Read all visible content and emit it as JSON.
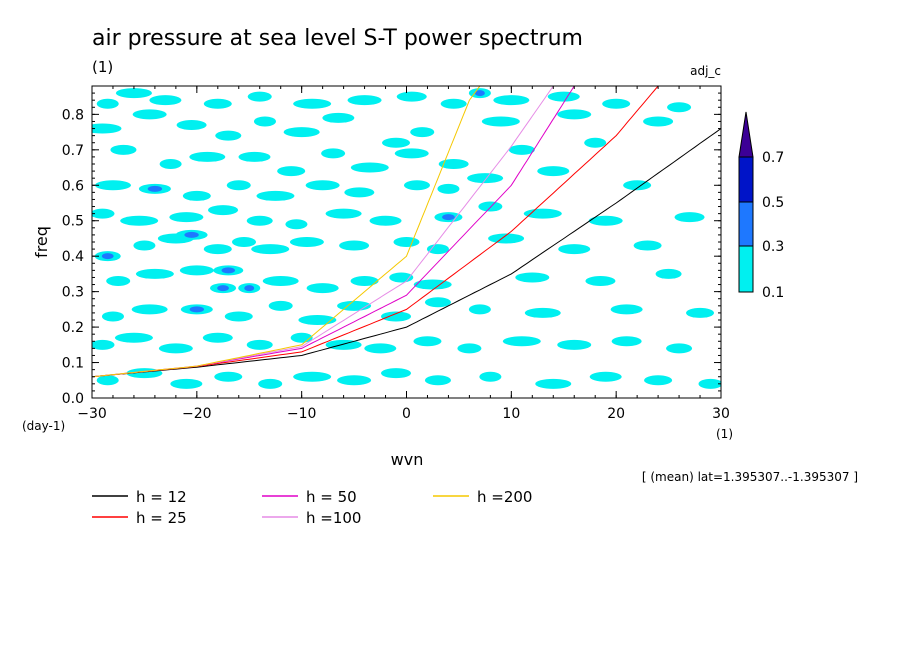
{
  "chart_data": {
    "type": "heatmap",
    "title": "air pressure at sea level S-T power spectrum",
    "units_label": "(1)",
    "case_label": "adj_c",
    "xlabel": "wvn",
    "ylabel": "freq",
    "x_unit_label": "(1)",
    "y_unit_label": "(day-1)",
    "xlim": [
      -30,
      30
    ],
    "ylim": [
      0,
      0.88
    ],
    "xticks": [
      -30,
      -20,
      -10,
      0,
      10,
      20,
      30
    ],
    "yticks": [
      0.0,
      0.1,
      0.2,
      0.3,
      0.4,
      0.5,
      0.6,
      0.7,
      0.8
    ],
    "ytick_labels": [
      "0.0",
      "0.1",
      "0.2",
      "0.3",
      "0.4",
      "0.5",
      "0.6",
      "0.7",
      "0.8"
    ],
    "colorbar": {
      "levels": [
        {
          "label": "0.1",
          "color": "#00f0f0"
        },
        {
          "label": "0.3",
          "color": "#1e78ff"
        },
        {
          "label": "0.5",
          "color": "#0014c8"
        },
        {
          "label": "0.7",
          "color": "#3c0096"
        }
      ]
    },
    "blobs": [
      {
        "x": -28.5,
        "y": 0.83,
        "v": 0.15
      },
      {
        "x": -26,
        "y": 0.86,
        "v": 0.15
      },
      {
        "x": -23,
        "y": 0.84,
        "v": 0.15
      },
      {
        "x": -18,
        "y": 0.83,
        "v": 0.15
      },
      {
        "x": -14,
        "y": 0.85,
        "v": 0.15
      },
      {
        "x": -9,
        "y": 0.83,
        "v": 0.15
      },
      {
        "x": -4,
        "y": 0.84,
        "v": 0.15
      },
      {
        "x": 0.5,
        "y": 0.85,
        "v": 0.15
      },
      {
        "x": 4.5,
        "y": 0.83,
        "v": 0.15
      },
      {
        "x": 7,
        "y": 0.86,
        "v": 0.35
      },
      {
        "x": 10,
        "y": 0.84,
        "v": 0.15
      },
      {
        "x": 15,
        "y": 0.85,
        "v": 0.15
      },
      {
        "x": 20,
        "y": 0.83,
        "v": 0.15
      },
      {
        "x": 26,
        "y": 0.82,
        "v": 0.15
      },
      {
        "x": -29,
        "y": 0.76,
        "v": 0.15
      },
      {
        "x": -24.5,
        "y": 0.8,
        "v": 0.15
      },
      {
        "x": -20.5,
        "y": 0.77,
        "v": 0.15
      },
      {
        "x": -17,
        "y": 0.74,
        "v": 0.15
      },
      {
        "x": -13.5,
        "y": 0.78,
        "v": 0.15
      },
      {
        "x": -10,
        "y": 0.75,
        "v": 0.15
      },
      {
        "x": -6.5,
        "y": 0.79,
        "v": 0.15
      },
      {
        "x": -1,
        "y": 0.72,
        "v": 0.15
      },
      {
        "x": 1.5,
        "y": 0.75,
        "v": 0.15
      },
      {
        "x": 9,
        "y": 0.78,
        "v": 0.15
      },
      {
        "x": 16,
        "y": 0.8,
        "v": 0.15
      },
      {
        "x": 24,
        "y": 0.78,
        "v": 0.15
      },
      {
        "x": -27,
        "y": 0.7,
        "v": 0.15
      },
      {
        "x": -22.5,
        "y": 0.66,
        "v": 0.15
      },
      {
        "x": -19,
        "y": 0.68,
        "v": 0.15
      },
      {
        "x": -14.5,
        "y": 0.68,
        "v": 0.15
      },
      {
        "x": -11,
        "y": 0.64,
        "v": 0.15
      },
      {
        "x": -7,
        "y": 0.69,
        "v": 0.15
      },
      {
        "x": -3.5,
        "y": 0.65,
        "v": 0.15
      },
      {
        "x": 0.5,
        "y": 0.69,
        "v": 0.15
      },
      {
        "x": 4.5,
        "y": 0.66,
        "v": 0.15
      },
      {
        "x": 11,
        "y": 0.7,
        "v": 0.15
      },
      {
        "x": 18,
        "y": 0.72,
        "v": 0.15
      },
      {
        "x": -28,
        "y": 0.6,
        "v": 0.15
      },
      {
        "x": -24,
        "y": 0.59,
        "v": 0.3
      },
      {
        "x": -20,
        "y": 0.57,
        "v": 0.15
      },
      {
        "x": -16,
        "y": 0.6,
        "v": 0.15
      },
      {
        "x": -12.5,
        "y": 0.57,
        "v": 0.15
      },
      {
        "x": -8,
        "y": 0.6,
        "v": 0.15
      },
      {
        "x": -4.5,
        "y": 0.58,
        "v": 0.15
      },
      {
        "x": 1,
        "y": 0.6,
        "v": 0.15
      },
      {
        "x": 4,
        "y": 0.59,
        "v": 0.15
      },
      {
        "x": 7.5,
        "y": 0.62,
        "v": 0.15
      },
      {
        "x": 14,
        "y": 0.64,
        "v": 0.15
      },
      {
        "x": 22,
        "y": 0.6,
        "v": 0.15
      },
      {
        "x": -29,
        "y": 0.52,
        "v": 0.15
      },
      {
        "x": -25.5,
        "y": 0.5,
        "v": 0.15
      },
      {
        "x": -21,
        "y": 0.51,
        "v": 0.15
      },
      {
        "x": -17.5,
        "y": 0.53,
        "v": 0.15
      },
      {
        "x": -14,
        "y": 0.5,
        "v": 0.15
      },
      {
        "x": -10.5,
        "y": 0.49,
        "v": 0.15
      },
      {
        "x": -6,
        "y": 0.52,
        "v": 0.15
      },
      {
        "x": -2,
        "y": 0.5,
        "v": 0.15
      },
      {
        "x": 4,
        "y": 0.51,
        "v": 0.3
      },
      {
        "x": 8,
        "y": 0.54,
        "v": 0.15
      },
      {
        "x": 13,
        "y": 0.52,
        "v": 0.15
      },
      {
        "x": 19,
        "y": 0.5,
        "v": 0.15
      },
      {
        "x": 27,
        "y": 0.51,
        "v": 0.15
      },
      {
        "x": -28.5,
        "y": 0.4,
        "v": 0.35
      },
      {
        "x": -25,
        "y": 0.43,
        "v": 0.15
      },
      {
        "x": -22,
        "y": 0.45,
        "v": 0.15
      },
      {
        "x": -20.5,
        "y": 0.46,
        "v": 0.4
      },
      {
        "x": -18,
        "y": 0.42,
        "v": 0.15
      },
      {
        "x": -15.5,
        "y": 0.44,
        "v": 0.15
      },
      {
        "x": -13,
        "y": 0.42,
        "v": 0.15
      },
      {
        "x": -9.5,
        "y": 0.44,
        "v": 0.15
      },
      {
        "x": -5,
        "y": 0.43,
        "v": 0.15
      },
      {
        "x": 0,
        "y": 0.44,
        "v": 0.15
      },
      {
        "x": 3,
        "y": 0.42,
        "v": 0.15
      },
      {
        "x": 9.5,
        "y": 0.45,
        "v": 0.15
      },
      {
        "x": 16,
        "y": 0.42,
        "v": 0.15
      },
      {
        "x": 23,
        "y": 0.43,
        "v": 0.15
      },
      {
        "x": -27.5,
        "y": 0.33,
        "v": 0.15
      },
      {
        "x": -24,
        "y": 0.35,
        "v": 0.15
      },
      {
        "x": -20,
        "y": 0.36,
        "v": 0.15
      },
      {
        "x": -17,
        "y": 0.36,
        "v": 0.35
      },
      {
        "x": -17.5,
        "y": 0.31,
        "v": 0.35
      },
      {
        "x": -15,
        "y": 0.31,
        "v": 0.3
      },
      {
        "x": -12,
        "y": 0.33,
        "v": 0.15
      },
      {
        "x": -8,
        "y": 0.31,
        "v": 0.15
      },
      {
        "x": -4,
        "y": 0.33,
        "v": 0.15
      },
      {
        "x": -0.5,
        "y": 0.34,
        "v": 0.15
      },
      {
        "x": 2.5,
        "y": 0.32,
        "v": 0.15
      },
      {
        "x": 12,
        "y": 0.34,
        "v": 0.15
      },
      {
        "x": 18.5,
        "y": 0.33,
        "v": 0.15
      },
      {
        "x": 25,
        "y": 0.35,
        "v": 0.15
      },
      {
        "x": -28,
        "y": 0.23,
        "v": 0.15
      },
      {
        "x": -24.5,
        "y": 0.25,
        "v": 0.15
      },
      {
        "x": -20,
        "y": 0.25,
        "v": 0.3
      },
      {
        "x": -16,
        "y": 0.23,
        "v": 0.15
      },
      {
        "x": -12,
        "y": 0.26,
        "v": 0.15
      },
      {
        "x": -8.5,
        "y": 0.22,
        "v": 0.15
      },
      {
        "x": -5,
        "y": 0.26,
        "v": 0.15
      },
      {
        "x": -1,
        "y": 0.23,
        "v": 0.15
      },
      {
        "x": 3,
        "y": 0.27,
        "v": 0.15
      },
      {
        "x": 7,
        "y": 0.25,
        "v": 0.15
      },
      {
        "x": 13,
        "y": 0.24,
        "v": 0.15
      },
      {
        "x": 21,
        "y": 0.25,
        "v": 0.15
      },
      {
        "x": 28,
        "y": 0.24,
        "v": 0.15
      },
      {
        "x": -29,
        "y": 0.15,
        "v": 0.15
      },
      {
        "x": -26,
        "y": 0.17,
        "v": 0.15
      },
      {
        "x": -22,
        "y": 0.14,
        "v": 0.15
      },
      {
        "x": -18,
        "y": 0.17,
        "v": 0.15
      },
      {
        "x": -14,
        "y": 0.15,
        "v": 0.15
      },
      {
        "x": -10,
        "y": 0.17,
        "v": 0.15
      },
      {
        "x": -6,
        "y": 0.15,
        "v": 0.15
      },
      {
        "x": -2.5,
        "y": 0.14,
        "v": 0.15
      },
      {
        "x": 2,
        "y": 0.16,
        "v": 0.15
      },
      {
        "x": 6,
        "y": 0.14,
        "v": 0.15
      },
      {
        "x": 11,
        "y": 0.16,
        "v": 0.15
      },
      {
        "x": 16,
        "y": 0.15,
        "v": 0.15
      },
      {
        "x": 21,
        "y": 0.16,
        "v": 0.15
      },
      {
        "x": 26,
        "y": 0.14,
        "v": 0.15
      },
      {
        "x": -28.5,
        "y": 0.05,
        "v": 0.15
      },
      {
        "x": -25,
        "y": 0.07,
        "v": 0.15
      },
      {
        "x": -21,
        "y": 0.04,
        "v": 0.15
      },
      {
        "x": -17,
        "y": 0.06,
        "v": 0.15
      },
      {
        "x": -13,
        "y": 0.04,
        "v": 0.15
      },
      {
        "x": -9,
        "y": 0.06,
        "v": 0.15
      },
      {
        "x": -5,
        "y": 0.05,
        "v": 0.15
      },
      {
        "x": -1,
        "y": 0.07,
        "v": 0.15
      },
      {
        "x": 3,
        "y": 0.05,
        "v": 0.15
      },
      {
        "x": 8,
        "y": 0.06,
        "v": 0.15
      },
      {
        "x": 14,
        "y": 0.04,
        "v": 0.15
      },
      {
        "x": 19,
        "y": 0.06,
        "v": 0.15
      },
      {
        "x": 24,
        "y": 0.05,
        "v": 0.15
      },
      {
        "x": 29,
        "y": 0.04,
        "v": 0.15
      }
    ],
    "series": [
      {
        "name": "h = 12",
        "color": "#000000",
        "x": [
          -30,
          -20,
          -10,
          0,
          10,
          20,
          30
        ],
        "y": [
          0.06,
          0.087,
          0.12,
          0.2,
          0.35,
          0.55,
          0.76
        ]
      },
      {
        "name": "h = 25",
        "color": "#ff0000",
        "x": [
          -30,
          -20,
          -10,
          0,
          10,
          20,
          24
        ],
        "y": [
          0.06,
          0.089,
          0.13,
          0.25,
          0.47,
          0.74,
          0.88
        ]
      },
      {
        "name": "h = 50",
        "color": "#e000c8",
        "x": [
          -30,
          -20,
          -10,
          0,
          10,
          16
        ],
        "y": [
          0.06,
          0.09,
          0.14,
          0.29,
          0.6,
          0.88
        ]
      },
      {
        "name": "h =100",
        "color": "#e68ce6",
        "x": [
          -30,
          -20,
          -10,
          0,
          10,
          14
        ],
        "y": [
          0.06,
          0.09,
          0.145,
          0.33,
          0.71,
          0.88
        ]
      },
      {
        "name": "h =200",
        "color": "#f5c800",
        "x": [
          -30,
          -20,
          -10,
          0,
          6,
          7
        ],
        "y": [
          0.06,
          0.09,
          0.15,
          0.4,
          0.84,
          0.88
        ]
      }
    ]
  },
  "footer_note": "[ (mean) lat=1.395307..-1.395307 ]"
}
